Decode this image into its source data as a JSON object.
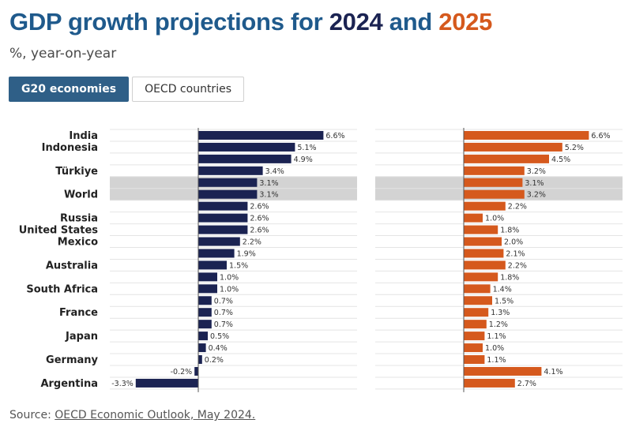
{
  "title": {
    "prefix": "GDP growth projections for ",
    "year1": "2024",
    "connector": " and ",
    "year2": "2025"
  },
  "subtitle": "%, year-on-year",
  "tabs": [
    {
      "label": "G20 economies",
      "active": true
    },
    {
      "label": "OECD countries",
      "active": false
    }
  ],
  "source": {
    "prefix": "Source: ",
    "link_text": "OECD Economic Outlook, May 2024."
  },
  "colors": {
    "series_2024": "#1b2352",
    "series_2025": "#d5591d",
    "highlight_band": "#d3d3d3",
    "active_tab": "#2f5f87"
  },
  "chart_data": {
    "type": "bar",
    "orientation": "horizontal",
    "unit": "%",
    "rows": 22,
    "row_labels": [
      "India",
      "Indonesia",
      "",
      "Türkiye",
      "",
      "World",
      "",
      "Russia",
      "United States",
      "Mexico",
      "",
      "Australia",
      "",
      "South Africa",
      "",
      "France",
      "",
      "Japan",
      "",
      "Germany",
      "",
      "Argentina"
    ],
    "highlight_rows": [
      4,
      5
    ],
    "series": [
      {
        "name": "2024",
        "values": [
          6.6,
          5.1,
          4.9,
          3.4,
          3.1,
          3.1,
          2.6,
          2.6,
          2.6,
          2.2,
          1.9,
          1.5,
          1.0,
          1.0,
          0.7,
          0.7,
          0.7,
          0.5,
          0.4,
          0.2,
          -0.2,
          -3.3
        ],
        "value_labels": [
          "6.6%",
          "5.1%",
          "4.9%",
          "3.4%",
          "3.1%",
          "3.1%",
          "2.6%",
          "2.6%",
          "2.6%",
          "2.2%",
          "1.9%",
          "1.5%",
          "1.0%",
          "1.0%",
          "0.7%",
          "0.7%",
          "0.7%",
          "0.5%",
          "0.4%",
          "0.2%",
          "-0.2%",
          "-3.3%"
        ],
        "xlim": [
          -4.2,
          7.8
        ]
      },
      {
        "name": "2025",
        "values": [
          6.6,
          5.2,
          4.5,
          3.2,
          3.1,
          3.2,
          2.2,
          1.0,
          1.8,
          2.0,
          2.1,
          2.2,
          1.8,
          1.4,
          1.5,
          1.3,
          1.2,
          1.1,
          1.0,
          1.1,
          4.1,
          2.7
        ],
        "value_labels": [
          "6.6%",
          "5.2%",
          "4.5%",
          "3.2%",
          "3.1%",
          "3.2%",
          "2.2%",
          "1.0%",
          "1.8%",
          "2.0%",
          "2.1%",
          "2.2%",
          "1.8%",
          "1.4%",
          "1.5%",
          "1.3%",
          "1.2%",
          "1.1%",
          "1.0%",
          "1.1%",
          "4.1%",
          "2.7%"
        ],
        "xlim": [
          -4.2,
          7.8
        ]
      }
    ],
    "grid": true
  }
}
